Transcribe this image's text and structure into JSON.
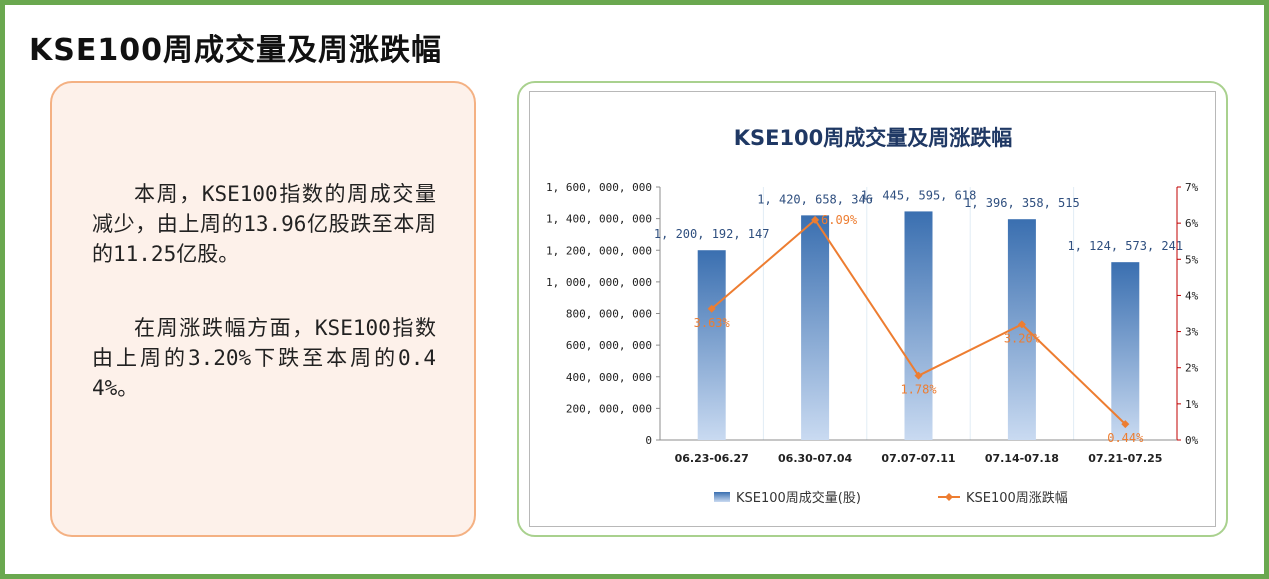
{
  "page": {
    "title": "KSE100周成交量及周涨跌幅",
    "paragraphs": [
      "本周，KSE100指数的周成交量减少，由上周的13.96亿股跌至本周的11.25亿股。",
      "在周涨跌幅方面，KSE100指数由上周的3.20%下跌至本周的0.44%。"
    ]
  },
  "colors": {
    "frame": "#6aa84f",
    "text_card_border": "#f4b183",
    "text_card_bg": "#fdf1ea",
    "chart_card_border": "#a9d18e",
    "bar_top": "#3a6fb0",
    "bar_bottom": "#c9daf1",
    "line": "#ed7d31",
    "bar_label": "#2f4f7f",
    "title": "#1f3864",
    "right_axis": "#c00000"
  },
  "chart_data": {
    "type": "bar",
    "title": "KSE100周成交量及周涨跌幅",
    "categories": [
      "06.23-06.27",
      "06.30-07.04",
      "07.07-07.11",
      "07.14-07.18",
      "07.21-07.25"
    ],
    "series": [
      {
        "name": "KSE100周成交量(股)",
        "type": "bar",
        "axis": "left",
        "values": [
          1200192147,
          1420658346,
          1445595618,
          1396358515,
          1124573241
        ],
        "labels": [
          "1, 200, 192, 147",
          "1, 420, 658, 346",
          "1, 445, 595, 618",
          "1, 396, 358, 515",
          "1, 124, 573, 241"
        ]
      },
      {
        "name": "KSE100周涨跌幅",
        "type": "line",
        "axis": "right",
        "values": [
          3.63,
          6.09,
          1.78,
          3.2,
          0.44
        ],
        "labels": [
          "3.63%",
          "6.09%",
          "1.78%",
          "3.20%",
          "0.44%"
        ]
      }
    ],
    "ylim_left": [
      0,
      1600000000
    ],
    "left_ticks": [
      "0",
      "200, 000, 000",
      "400, 000, 000",
      "600, 000, 000",
      "800, 000, 000",
      "1, 000, 000, 000",
      "1, 200, 000, 000",
      "1, 400, 000, 000",
      "1, 600, 000, 000"
    ],
    "ylim_right": [
      0,
      7
    ],
    "right_ticks": [
      "0%",
      "1%",
      "2%",
      "3%",
      "4%",
      "5%",
      "6%",
      "7%"
    ],
    "grid": false,
    "legend": "bottom"
  }
}
